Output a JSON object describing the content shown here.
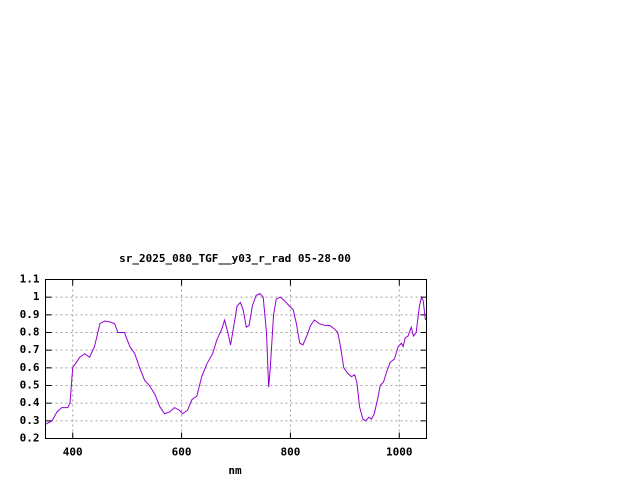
{
  "chart_data": {
    "type": "line",
    "title": "sr_2025_080_TGF__y03_r_rad 05-28-00",
    "x_label": "nm",
    "xlim": [
      350,
      1050
    ],
    "xticks": [
      400,
      600,
      800,
      1000
    ],
    "ylim": [
      0.2,
      1.1
    ],
    "yticks": [
      0.2,
      0.3,
      0.4,
      0.5,
      0.6,
      0.7,
      0.8,
      0.9,
      1,
      1.1
    ],
    "grid": true,
    "series": [
      {
        "name": "sr_2025_080_TGF__y03_r_rad",
        "color": "#9400d3",
        "x": [
          350,
          362,
          371,
          380,
          391,
          395,
          400,
          413,
          422,
          431,
          440,
          450,
          459,
          468,
          477,
          483,
          495,
          505,
          514,
          523,
          532,
          541,
          551,
          560,
          569,
          578,
          587,
          596,
          602,
          611,
          619,
          628,
          637,
          646,
          657,
          665,
          674,
          679,
          685,
          690,
          695,
          702,
          708,
          713,
          719,
          724,
          730,
          737,
          744,
          750,
          756,
          760,
          763,
          769,
          774,
          782,
          789,
          798,
          805,
          811,
          817,
          823,
          830,
          837,
          844,
          853,
          863,
          872,
          881,
          887,
          892,
          898,
          905,
          912,
          918,
          922,
          927,
          933,
          938,
          944,
          949,
          954,
          960,
          965,
          971,
          976,
          983,
          991,
          998,
          1004,
          1007,
          1011,
          1016,
          1022,
          1026,
          1031,
          1037,
          1041,
          1044,
          1048
        ],
        "values": [
          0.28,
          0.3,
          0.35,
          0.375,
          0.375,
          0.4,
          0.6,
          0.66,
          0.68,
          0.66,
          0.72,
          0.85,
          0.865,
          0.86,
          0.85,
          0.8,
          0.8,
          0.72,
          0.68,
          0.6,
          0.53,
          0.5,
          0.45,
          0.38,
          0.34,
          0.35,
          0.375,
          0.36,
          0.34,
          0.36,
          0.42,
          0.44,
          0.55,
          0.62,
          0.68,
          0.76,
          0.82,
          0.87,
          0.8,
          0.73,
          0.82,
          0.95,
          0.97,
          0.93,
          0.83,
          0.84,
          0.95,
          1.01,
          1.02,
          1.0,
          0.8,
          0.49,
          0.6,
          0.9,
          0.99,
          1.0,
          0.98,
          0.95,
          0.93,
          0.85,
          0.74,
          0.73,
          0.78,
          0.84,
          0.87,
          0.85,
          0.84,
          0.84,
          0.82,
          0.8,
          0.72,
          0.6,
          0.57,
          0.55,
          0.56,
          0.52,
          0.38,
          0.31,
          0.3,
          0.32,
          0.31,
          0.34,
          0.42,
          0.5,
          0.52,
          0.57,
          0.63,
          0.65,
          0.72,
          0.74,
          0.72,
          0.77,
          0.78,
          0.83,
          0.78,
          0.8,
          0.95,
          1.0,
          0.98,
          0.87
        ]
      }
    ]
  }
}
